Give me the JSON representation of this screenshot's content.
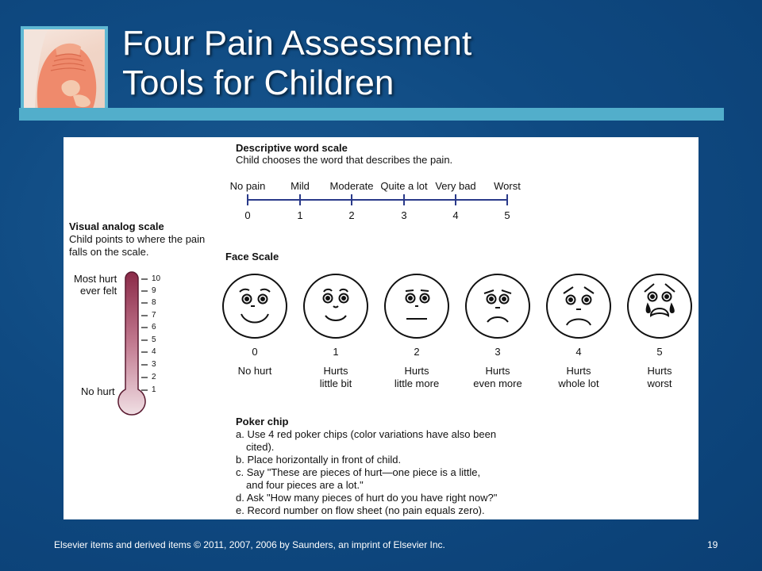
{
  "slide": {
    "title_line1": "Four Pain Assessment",
    "title_line2": "Tools for Children",
    "footer": "Elsevier items and derived items © 2011, 2007, 2006 by Saunders, an imprint of Elsevier Inc.",
    "page_number": "19"
  },
  "descriptive": {
    "title": "Descriptive word scale",
    "subtitle": "Child chooses the word that describes the pain.",
    "words": [
      "No pain",
      "Mild",
      "Moderate",
      "Quite a lot",
      "Very bad",
      "Worst"
    ],
    "numbers": [
      "0",
      "1",
      "2",
      "3",
      "4",
      "5"
    ]
  },
  "visual": {
    "title": "Visual analog scale",
    "line1": "Child points to where the pain",
    "line2": "falls on the scale.",
    "top_label1": "Most hurt",
    "top_label2": "ever felt",
    "bottom_label": "No hurt",
    "ticks": [
      "10",
      "9",
      "8",
      "7",
      "6",
      "5",
      "4",
      "3",
      "2",
      "1"
    ]
  },
  "face": {
    "title": "Face Scale",
    "numbers": [
      "0",
      "1",
      "2",
      "3",
      "4",
      "5"
    ],
    "labels_line1": [
      "No hurt",
      "Hurts",
      "Hurts",
      "Hurts",
      "Hurts",
      "Hurts"
    ],
    "labels_line2": [
      "",
      "little bit",
      "little more",
      "even more",
      "whole lot",
      "worst"
    ]
  },
  "poker": {
    "title": "Poker chip",
    "lines": [
      "a. Use 4 red poker chips (color variations have also been",
      "cited).",
      "b. Place horizontally in front of child.",
      "c. Say \"These are pieces of hurt—one piece is a little,",
      "and four pieces are a lot.\"",
      "d. Ask \"How many pieces of hurt do you have right now?\"",
      "e. Record number on flow sheet (no pain equals zero)."
    ]
  },
  "colors": {
    "background": "#0f4a82",
    "accent_bar": "#52aecb",
    "thermometer": "#8b2a48"
  }
}
